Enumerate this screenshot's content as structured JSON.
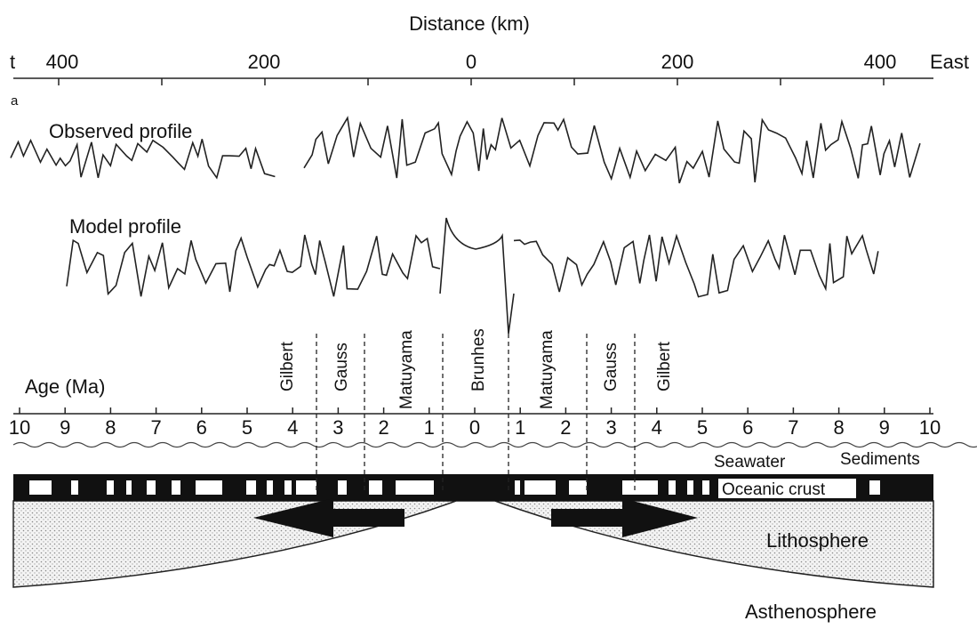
{
  "distance_axis": {
    "title": "Distance (km)",
    "labels": [
      "t",
      400,
      200,
      0,
      200,
      400,
      "East"
    ]
  },
  "panel_label": "a",
  "profiles": [
    "Observed profile",
    "Model profile"
  ],
  "chrons": [
    "Gilbert",
    "Gauss",
    "Matuyama",
    "Brunhes",
    "Matuyama",
    "Gauss",
    "Gilbert"
  ],
  "age_axis": {
    "title": "Age (Ma)",
    "labels": [
      10,
      9,
      8,
      7,
      6,
      5,
      4,
      3,
      2,
      1,
      0,
      1,
      2,
      3,
      4,
      5,
      6,
      7,
      8,
      9,
      10
    ]
  },
  "layers": [
    "Seawater",
    "Sediments",
    "Oceanic crust",
    "Lithosphere",
    "Asthenosphere"
  ]
}
